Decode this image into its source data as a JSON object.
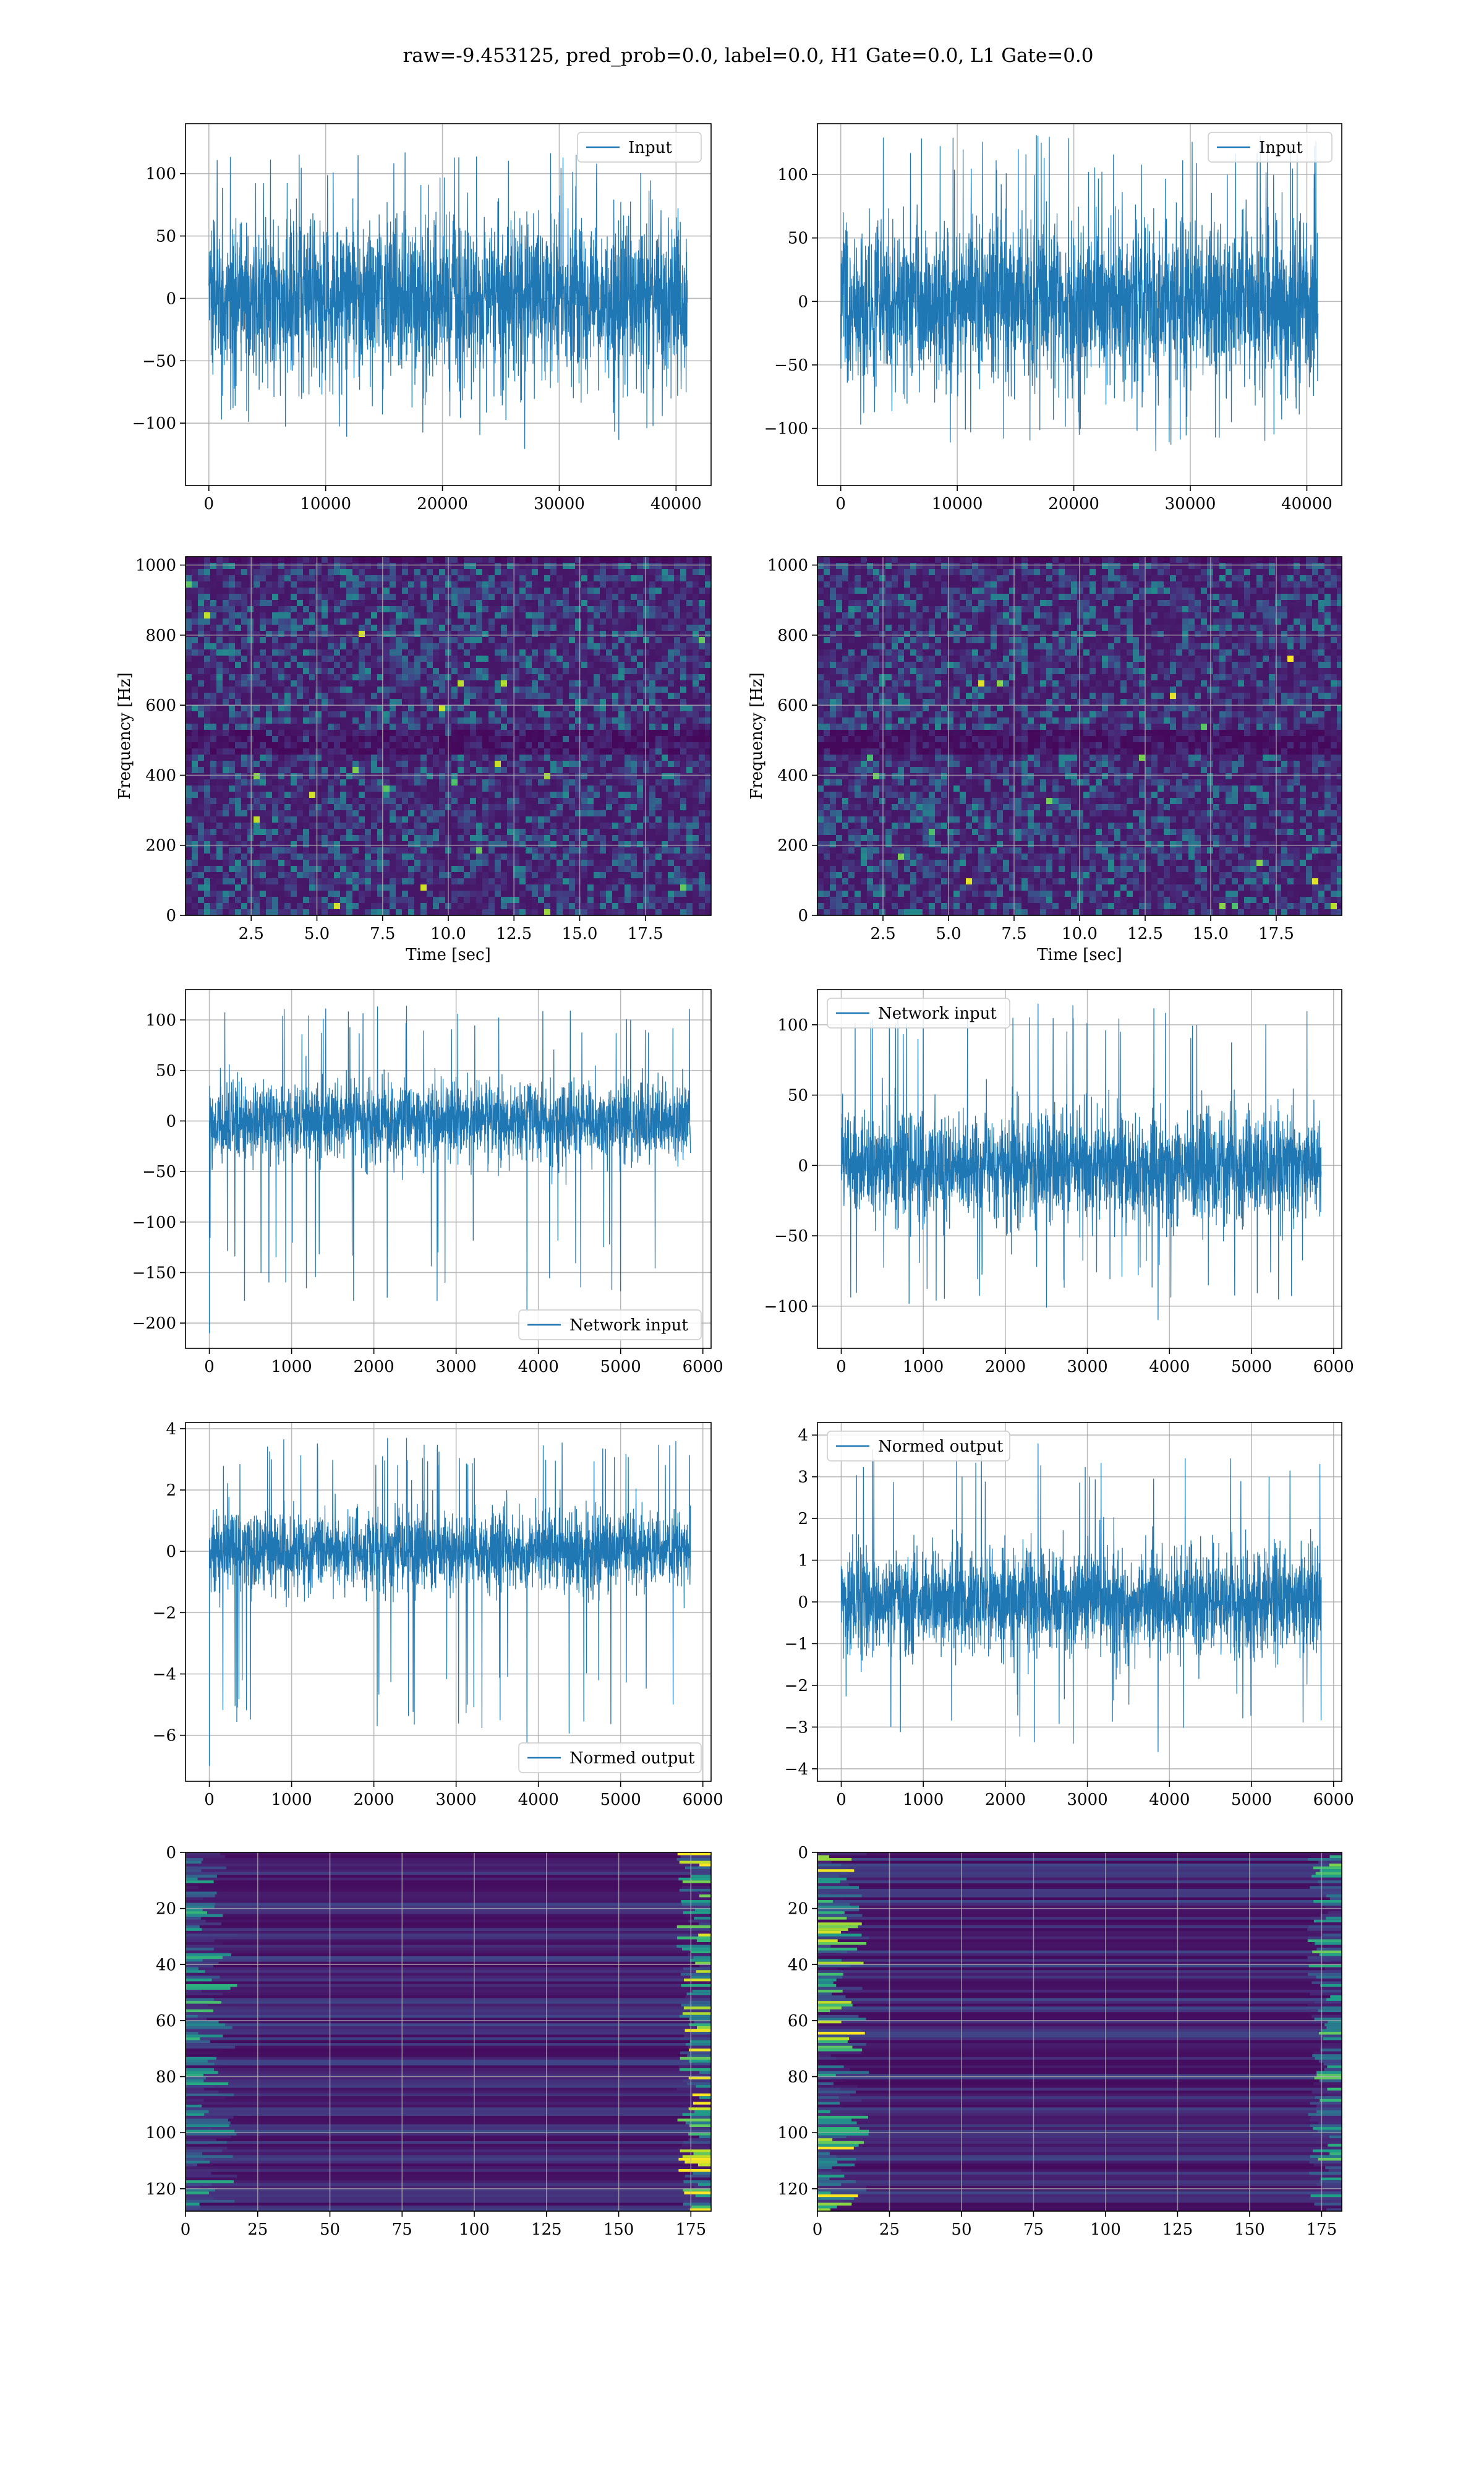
{
  "suptitle": "raw=-9.453125, pred_prob=0.0, label=0.0, H1 Gate=0.0, L1 Gate=0.0",
  "colors": {
    "line": "#1f77b4",
    "grid": "#b0b0b0",
    "viridis_low": "#440154",
    "viridis_mid": "#21918c",
    "viridis_high": "#fde725"
  },
  "chart_data": [
    {
      "id": "h1-input",
      "type": "line",
      "title": "",
      "xlabel": "",
      "ylabel": "",
      "xlim": [
        -2000,
        43000
      ],
      "ylim": [
        -150,
        140
      ],
      "xticks": [
        0,
        10000,
        20000,
        30000,
        40000
      ],
      "yticks": [
        -100,
        -50,
        0,
        50,
        100
      ],
      "series": [
        {
          "name": "Input",
          "n_samples": 40960,
          "x_range": [
            0,
            40960
          ],
          "typical_band": [
            -75,
            75
          ],
          "max": 117,
          "min": -134
        }
      ],
      "legend": "top-right",
      "grid": true
    },
    {
      "id": "l1-input",
      "type": "line",
      "title": "",
      "xlabel": "",
      "ylabel": "",
      "xlim": [
        -2000,
        43000
      ],
      "ylim": [
        -145,
        140
      ],
      "xticks": [
        0,
        10000,
        20000,
        30000,
        40000
      ],
      "yticks": [
        -100,
        -50,
        0,
        50,
        100
      ],
      "series": [
        {
          "name": "Input",
          "n_samples": 40960,
          "x_range": [
            0,
            40960
          ],
          "typical_band": [
            -75,
            75
          ],
          "max": 131,
          "min": -131
        }
      ],
      "legend": "top-right",
      "grid": true
    },
    {
      "id": "h1-spectrogram",
      "type": "heatmap",
      "title": "",
      "xlabel": "Time [sec]",
      "ylabel": "Frequency [Hz]",
      "xlim": [
        0,
        20
      ],
      "ylim": [
        0,
        1024
      ],
      "xticks": [
        2.5,
        5.0,
        7.5,
        10.0,
        12.5,
        15.0,
        17.5
      ],
      "yticks": [
        0,
        200,
        400,
        600,
        800,
        1000
      ],
      "colormap": "viridis",
      "grid": true
    },
    {
      "id": "l1-spectrogram",
      "type": "heatmap",
      "title": "",
      "xlabel": "Time [sec]",
      "ylabel": "Frequency [Hz]",
      "xlim": [
        0,
        20
      ],
      "ylim": [
        0,
        1024
      ],
      "xticks": [
        2.5,
        5.0,
        7.5,
        10.0,
        12.5,
        15.0,
        17.5
      ],
      "yticks": [
        0,
        200,
        400,
        600,
        800,
        1000
      ],
      "colormap": "viridis",
      "grid": true
    },
    {
      "id": "h1-network-input",
      "type": "line",
      "title": "",
      "xlabel": "",
      "ylabel": "",
      "xlim": [
        -290,
        6100
      ],
      "ylim": [
        -225,
        130
      ],
      "xticks": [
        0,
        1000,
        2000,
        3000,
        4000,
        5000,
        6000
      ],
      "yticks": [
        -200,
        -150,
        -100,
        -50,
        0,
        50,
        100
      ],
      "series": [
        {
          "name": "Network input",
          "n_samples": 5850,
          "x_range": [
            0,
            5850
          ],
          "typical_band": [
            -45,
            45
          ],
          "max": 114,
          "min": -210
        }
      ],
      "legend": "bottom-right",
      "grid": true
    },
    {
      "id": "l1-network-input",
      "type": "line",
      "title": "",
      "xlabel": "",
      "ylabel": "",
      "xlim": [
        -290,
        6100
      ],
      "ylim": [
        -130,
        125
      ],
      "xticks": [
        0,
        1000,
        2000,
        3000,
        4000,
        5000,
        6000
      ],
      "yticks": [
        -100,
        -50,
        0,
        50,
        100
      ],
      "series": [
        {
          "name": "Network input",
          "n_samples": 5850,
          "x_range": [
            0,
            5850
          ],
          "typical_band": [
            -45,
            45
          ],
          "max": 115,
          "min": -122
        }
      ],
      "legend": "top-left",
      "grid": true
    },
    {
      "id": "h1-normed-output",
      "type": "line",
      "title": "",
      "xlabel": "",
      "ylabel": "",
      "xlim": [
        -290,
        6100
      ],
      "ylim": [
        -7.5,
        4.2
      ],
      "xticks": [
        0,
        1000,
        2000,
        3000,
        4000,
        5000,
        6000
      ],
      "yticks": [
        -6,
        -4,
        -2,
        0,
        2,
        4
      ],
      "series": [
        {
          "name": "Normed output",
          "n_samples": 5850,
          "x_range": [
            0,
            5850
          ],
          "typical_band": [
            -1.5,
            1.5
          ],
          "max": 3.7,
          "min": -7.0
        }
      ],
      "legend": "bottom-right",
      "grid": true
    },
    {
      "id": "l1-normed-output",
      "type": "line",
      "title": "",
      "xlabel": "",
      "ylabel": "",
      "xlim": [
        -290,
        6100
      ],
      "ylim": [
        -4.3,
        4.3
      ],
      "xticks": [
        0,
        1000,
        2000,
        3000,
        4000,
        5000,
        6000
      ],
      "yticks": [
        -4,
        -3,
        -2,
        -1,
        0,
        1,
        2,
        3,
        4
      ],
      "series": [
        {
          "name": "Normed output",
          "n_samples": 5850,
          "x_range": [
            0,
            5850
          ],
          "typical_band": [
            -1.5,
            1.5
          ],
          "max": 3.8,
          "min": -4.0
        }
      ],
      "legend": "top-left",
      "grid": true
    },
    {
      "id": "h1-feature-map",
      "type": "heatmap",
      "title": "",
      "xlabel": "",
      "ylabel": "",
      "xlim": [
        0,
        182
      ],
      "ylim": [
        128,
        0
      ],
      "xticks": [
        0,
        25,
        50,
        75,
        100,
        125,
        150,
        175
      ],
      "yticks": [
        0,
        20,
        40,
        60,
        80,
        100,
        120
      ],
      "colormap": "viridis",
      "grid": true
    },
    {
      "id": "l1-feature-map",
      "type": "heatmap",
      "title": "",
      "xlabel": "",
      "ylabel": "",
      "xlim": [
        0,
        182
      ],
      "ylim": [
        128,
        0
      ],
      "xticks": [
        0,
        25,
        50,
        75,
        100,
        125,
        150,
        175
      ],
      "yticks": [
        0,
        20,
        40,
        60,
        80,
        100,
        120
      ],
      "colormap": "viridis",
      "grid": true
    }
  ]
}
